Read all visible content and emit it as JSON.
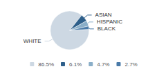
{
  "chart_data": {
    "type": "pie",
    "categories": [
      "WHITE",
      "ASIAN",
      "HISPANIC",
      "BLACK"
    ],
    "values": [
      86.5,
      6.1,
      4.7,
      2.7
    ],
    "value_labels": [
      "86.5%",
      "6.1%",
      "4.7%",
      "2.7%"
    ],
    "colors": [
      "#cdd8e3",
      "#2e5f8a",
      "#8aaec8",
      "#4a7aa8"
    ],
    "legend": "bottom"
  }
}
